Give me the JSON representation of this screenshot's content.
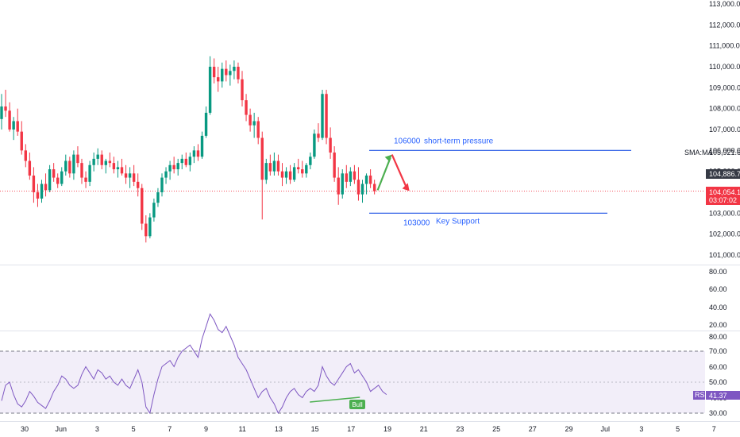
{
  "chart_data": [
    {
      "type": "candlestick",
      "title": "",
      "price_axis": {
        "ticks": [
          "113,000.00",
          "112,000.00",
          "111,000.00",
          "110,000.00",
          "109,000.00",
          "108,000.00",
          "107,000.00",
          "106,000.00",
          "105,000.00",
          "104,000.00",
          "103,000.00",
          "102,000.00",
          "101,000.00"
        ],
        "range": [
          100700,
          113100
        ]
      },
      "time_axis": {
        "ticks": [
          "30",
          "Jun",
          "3",
          "5",
          "7",
          "9",
          "11",
          "13",
          "15",
          "17",
          "19",
          "21",
          "23",
          "25",
          "27",
          "29",
          "Jul",
          "3",
          "5",
          "7"
        ]
      },
      "sma": {
        "label": "SMA:MA",
        "value": "105,921.62"
      },
      "price_label_high": {
        "value": "104,886.78"
      },
      "current_price": {
        "value": "104,054.11",
        "countdown": "03:07:02",
        "price": 104054
      },
      "levels": [
        {
          "price": 106000,
          "label_value": "106000",
          "label_text": "short-term pressure",
          "color": "#1e53e5"
        },
        {
          "price": 103000,
          "label_value": "103000",
          "label_text": "Key Support",
          "color": "#1e53e5"
        }
      ],
      "projections": [
        {
          "direction": "up",
          "color": "#4caf50",
          "from": 104100,
          "to": 105800
        },
        {
          "direction": "down",
          "color": "#f23645",
          "from": 105800,
          "to": 104100
        }
      ],
      "candles": [
        [
          107500,
          108700,
          107000,
          108100
        ],
        [
          108100,
          108900,
          107600,
          107900
        ],
        [
          107900,
          108300,
          106900,
          107000
        ],
        [
          107000,
          107600,
          106500,
          107400
        ],
        [
          107400,
          108000,
          106700,
          106900
        ],
        [
          106900,
          107400,
          105800,
          106000
        ],
        [
          106000,
          106300,
          105200,
          105500
        ],
        [
          105500,
          105900,
          104600,
          104800
        ],
        [
          104800,
          105200,
          103500,
          104000
        ],
        [
          104000,
          104400,
          103300,
          103700
        ],
        [
          103700,
          104600,
          103500,
          104400
        ],
        [
          104400,
          104900,
          103800,
          104100
        ],
        [
          104100,
          105300,
          104000,
          105100
        ],
        [
          105100,
          105400,
          104500,
          104700
        ],
        [
          104700,
          104900,
          104200,
          104400
        ],
        [
          104400,
          105200,
          104300,
          105000
        ],
        [
          105000,
          105800,
          104800,
          105500
        ],
        [
          105500,
          105700,
          104700,
          104900
        ],
        [
          104900,
          106000,
          104600,
          105800
        ],
        [
          105800,
          106200,
          105200,
          105400
        ],
        [
          105400,
          105600,
          104400,
          104700
        ],
        [
          104700,
          105000,
          104200,
          104500
        ],
        [
          104500,
          105500,
          104300,
          105300
        ],
        [
          105300,
          105900,
          105000,
          105600
        ],
        [
          105600,
          106100,
          105300,
          105800
        ],
        [
          105800,
          106000,
          105100,
          105300
        ],
        [
          105300,
          105600,
          104900,
          105500
        ],
        [
          105500,
          105900,
          105200,
          105400
        ],
        [
          105400,
          105700,
          104900,
          105100
        ],
        [
          105100,
          105500,
          104700,
          105200
        ],
        [
          105200,
          105600,
          104800,
          104900
        ],
        [
          104900,
          105300,
          104400,
          104700
        ],
        [
          104700,
          105200,
          104200,
          104900
        ],
        [
          104900,
          105300,
          104300,
          104500
        ],
        [
          104500,
          104900,
          103800,
          104200
        ],
        [
          104200,
          104400,
          102200,
          102500
        ],
        [
          102500,
          102900,
          101600,
          101900
        ],
        [
          101900,
          103000,
          101800,
          102800
        ],
        [
          102800,
          103700,
          102600,
          103500
        ],
        [
          103500,
          104200,
          103300,
          104000
        ],
        [
          104000,
          104900,
          103800,
          104700
        ],
        [
          104700,
          105200,
          104400,
          105000
        ],
        [
          105000,
          105500,
          104600,
          105300
        ],
        [
          105300,
          105700,
          104900,
          105100
        ],
        [
          105100,
          105600,
          104800,
          105400
        ],
        [
          105400,
          105800,
          105100,
          105600
        ],
        [
          105600,
          105900,
          105200,
          105300
        ],
        [
          105300,
          105900,
          105000,
          105700
        ],
        [
          105700,
          106200,
          105400,
          106000
        ],
        [
          106000,
          106300,
          105500,
          105700
        ],
        [
          105700,
          106900,
          105600,
          106700
        ],
        [
          106700,
          108100,
          106600,
          107800
        ],
        [
          107800,
          110500,
          107700,
          110000
        ],
        [
          110000,
          110400,
          109200,
          109500
        ],
        [
          109500,
          110000,
          108800,
          109300
        ],
        [
          109300,
          110200,
          109000,
          109900
        ],
        [
          109900,
          110300,
          109300,
          109600
        ],
        [
          109600,
          110100,
          109100,
          109800
        ],
        [
          109800,
          110300,
          109400,
          110000
        ],
        [
          110000,
          110200,
          109200,
          109400
        ],
        [
          109400,
          109800,
          108100,
          108400
        ],
        [
          108400,
          108700,
          107400,
          107700
        ],
        [
          107700,
          108000,
          106900,
          107200
        ],
        [
          107200,
          107800,
          106600,
          107400
        ],
        [
          107400,
          107600,
          106300,
          106600
        ],
        [
          106600,
          106900,
          102700,
          104600
        ],
        [
          104600,
          105600,
          104400,
          105400
        ],
        [
          105400,
          105800,
          104800,
          105000
        ],
        [
          105000,
          105900,
          104800,
          105500
        ],
        [
          105500,
          105800,
          104800,
          105000
        ],
        [
          105000,
          105400,
          104300,
          104700
        ],
        [
          104700,
          105200,
          104400,
          105000
        ],
        [
          105000,
          105300,
          104400,
          104600
        ],
        [
          104600,
          105400,
          104500,
          105200
        ],
        [
          105200,
          105600,
          104900,
          105100
        ],
        [
          105100,
          105500,
          104700,
          104900
        ],
        [
          104900,
          105400,
          104700,
          105300
        ],
        [
          105300,
          105900,
          105100,
          105700
        ],
        [
          105700,
          107000,
          105600,
          106800
        ],
        [
          106800,
          107300,
          106400,
          106600
        ],
        [
          106600,
          108900,
          106500,
          108700
        ],
        [
          108700,
          108900,
          106300,
          106600
        ],
        [
          106600,
          107100,
          105600,
          105900
        ],
        [
          105900,
          106200,
          104500,
          104700
        ],
        [
          104700,
          105200,
          103400,
          103900
        ],
        [
          103900,
          105100,
          103700,
          104900
        ],
        [
          104900,
          105300,
          104200,
          104500
        ],
        [
          104500,
          105200,
          104300,
          105000
        ],
        [
          105000,
          105300,
          104400,
          104600
        ],
        [
          104600,
          105200,
          103600,
          103900
        ],
        [
          103900,
          104600,
          103500,
          104400
        ],
        [
          104400,
          104900,
          103900,
          104800
        ],
        [
          104800,
          105100,
          104200,
          104400
        ],
        [
          104400,
          104600,
          103900,
          104050
        ]
      ]
    },
    {
      "type": "line",
      "title": "",
      "ylim": [
        0,
        100
      ],
      "axis_ticks": [
        "80.00",
        "60.00",
        "40.00",
        "20.00",
        "80.00",
        "70.00",
        "60.00",
        "50.00",
        "40.00",
        "30.00"
      ],
      "label": "RSI",
      "value_label": "41.37",
      "bull_label": "Bull",
      "values": [
        38,
        48,
        50,
        42,
        36,
        34,
        38,
        44,
        41,
        37,
        35,
        33,
        38,
        44,
        48,
        54,
        52,
        48,
        46,
        48,
        55,
        60,
        56,
        52,
        58,
        56,
        52,
        54,
        50,
        48,
        52,
        48,
        46,
        52,
        58,
        50,
        34,
        30,
        42,
        52,
        60,
        62,
        64,
        60,
        66,
        70,
        72,
        74,
        70,
        66,
        78,
        86,
        94,
        90,
        84,
        82,
        86,
        80,
        74,
        66,
        62,
        58,
        52,
        46,
        40,
        44,
        46,
        40,
        36,
        30,
        34,
        40,
        44,
        46,
        42,
        40,
        44,
        46,
        44,
        48,
        60,
        54,
        50,
        48,
        52,
        56,
        60,
        62,
        56,
        58,
        54,
        50,
        44,
        46,
        48,
        44,
        42
      ],
      "divergence": {
        "from_index": 64,
        "to_index": 85
      }
    }
  ]
}
